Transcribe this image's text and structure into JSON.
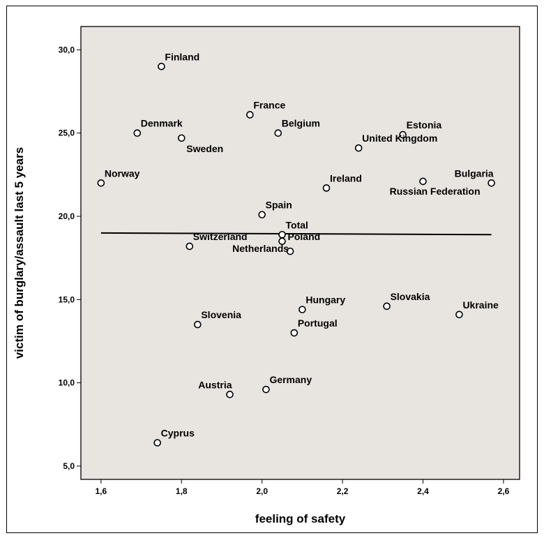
{
  "chart_data": {
    "type": "scatter",
    "xlabel": "feeling of safety",
    "ylabel": "victim of burglary/assault last 5 years",
    "xlim": [
      1.55,
      2.64
    ],
    "ylim": [
      4.2,
      31.4
    ],
    "xticks": [
      1.6,
      1.8,
      2.0,
      2.2,
      2.4,
      2.6
    ],
    "xtick_labels": [
      "1,6",
      "1,8",
      "2,0",
      "2,2",
      "2,4",
      "2,6"
    ],
    "yticks": [
      5,
      10,
      15,
      20,
      25,
      30
    ],
    "ytick_labels": [
      "5,0",
      "10,0",
      "15,0",
      "20,0",
      "25,0",
      "30,0"
    ],
    "grid": false,
    "background": "#e8e4e0",
    "reference_line": {
      "x": [
        1.6,
        2.57
      ],
      "y": [
        19.0,
        18.9
      ]
    },
    "points": [
      {
        "label": "Finland",
        "x": 1.75,
        "y": 29.0,
        "pos": "above-right"
      },
      {
        "label": "France",
        "x": 1.97,
        "y": 26.1,
        "pos": "above-right"
      },
      {
        "label": "Denmark",
        "x": 1.69,
        "y": 25.0,
        "pos": "above-right"
      },
      {
        "label": "Sweden",
        "x": 1.8,
        "y": 24.7,
        "pos": "below-right"
      },
      {
        "label": "Belgium",
        "x": 2.04,
        "y": 25.0,
        "pos": "above-right"
      },
      {
        "label": "Estonia",
        "x": 2.35,
        "y": 24.9,
        "pos": "above-right"
      },
      {
        "label": "United Kingdom",
        "x": 2.24,
        "y": 24.1,
        "pos": "above-right"
      },
      {
        "label": "Norway",
        "x": 1.6,
        "y": 22.0,
        "pos": "above-right"
      },
      {
        "label": "Ireland",
        "x": 2.16,
        "y": 21.7,
        "pos": "above-right"
      },
      {
        "label": "Russian Federation",
        "x": 2.4,
        "y": 22.1,
        "pos": "below-left"
      },
      {
        "label": "Bulgaria",
        "x": 2.57,
        "y": 22.0,
        "pos": "above-left"
      },
      {
        "label": "Spain",
        "x": 2.0,
        "y": 20.1,
        "pos": "above-right"
      },
      {
        "label": "Total",
        "x": 2.05,
        "y": 18.9,
        "pos": "above-right"
      },
      {
        "label": "Switzerland",
        "x": 1.82,
        "y": 18.2,
        "pos": "above-right"
      },
      {
        "label": "Poland",
        "x": 2.05,
        "y": 18.5,
        "pos": "right"
      },
      {
        "label": "Netherlands",
        "x": 2.07,
        "y": 17.9,
        "pos": "left"
      },
      {
        "label": "Hungary",
        "x": 2.1,
        "y": 14.4,
        "pos": "above-right"
      },
      {
        "label": "Slovakia",
        "x": 2.31,
        "y": 14.6,
        "pos": "above-right"
      },
      {
        "label": "Ukraine",
        "x": 2.49,
        "y": 14.1,
        "pos": "above-right"
      },
      {
        "label": "Slovenia",
        "x": 1.84,
        "y": 13.5,
        "pos": "above-right"
      },
      {
        "label": "Portugal",
        "x": 2.08,
        "y": 13.0,
        "pos": "above-right"
      },
      {
        "label": "Austria",
        "x": 1.92,
        "y": 9.3,
        "pos": "above-left"
      },
      {
        "label": "Germany",
        "x": 2.01,
        "y": 9.6,
        "pos": "above-right"
      },
      {
        "label": "Cyprus",
        "x": 1.74,
        "y": 6.4,
        "pos": "above-right"
      }
    ]
  }
}
